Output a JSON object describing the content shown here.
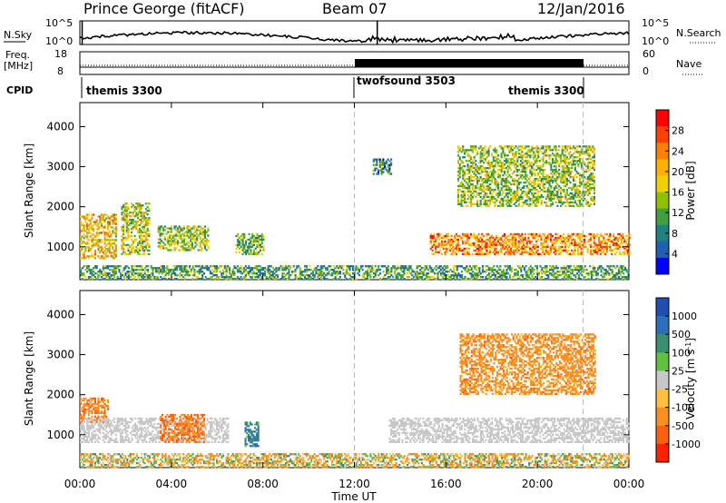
{
  "header": {
    "station": "Prince George (fitACF)",
    "beam": "Beam 07",
    "date": "12/Jan/2016"
  },
  "panels": {
    "nsky": {
      "label": "N.Sky",
      "tick_top": "10^5",
      "tick_bottom": "10^0",
      "right_label": "N.Search",
      "right_tick_top": "10^5",
      "right_tick_bottom": "10^0"
    },
    "freq": {
      "label_line1": "Freq.",
      "label_line2": "[MHz]",
      "tick_top": "18",
      "tick_bottom": "8",
      "right_label": "Nave",
      "right_tick_top": "60",
      "right_tick_bottom": "0"
    },
    "cpid": {
      "label": "CPID",
      "segments": [
        "themis 3300",
        "twofsound 3503",
        "themis 3300"
      ]
    },
    "power": {
      "ylabel": "Slant Range [km]",
      "cbar_label": "Power [dB]",
      "cbar_ticks": [
        "28",
        "24",
        "20",
        "16",
        "12",
        "8",
        "4"
      ],
      "cbar_colors": [
        "#ff0000",
        "#ff4000",
        "#ff8000",
        "#ffb000",
        "#f0d000",
        "#90c000",
        "#40a040",
        "#208080",
        "#2060b0",
        "#0000ff"
      ]
    },
    "velocity": {
      "ylabel": "Slant Range [km]",
      "cbar_label": "Velocity [m s",
      "cbar_label_sup": "-1",
      "cbar_ticks": [
        "1000",
        "500",
        "100",
        "25",
        "-25",
        "-100",
        "-500",
        "-1000"
      ],
      "cbar_colors": [
        "#1f4fb0",
        "#2d6fb8",
        "#3a8f70",
        "#60c040",
        "#c8c8c8",
        "#ffc040",
        "#ff9020",
        "#ff6010",
        "#ff2000"
      ]
    },
    "yticks": [
      "4000",
      "3000",
      "2000",
      "1000"
    ],
    "xticks": [
      "00:00",
      "04:00",
      "08:00",
      "12:00",
      "16:00",
      "20:00",
      "00:00"
    ],
    "xlabel": "Time UT"
  },
  "chart_data": [
    {
      "type": "heatmap",
      "name": "Power",
      "xlabel": "Time UT",
      "ylabel": "Slant Range [km]",
      "xlim": [
        0,
        24
      ],
      "ylim": [
        180,
        4600
      ],
      "colorbar": {
        "label": "Power [dB]",
        "ticks": [
          4,
          8,
          12,
          16,
          20,
          24,
          28
        ],
        "range": [
          0,
          32
        ]
      },
      "echo_regions": [
        {
          "t_start": 0.0,
          "t_end": 1.6,
          "range_min": 700,
          "range_max": 1800,
          "typical_value": 20
        },
        {
          "t_start": 1.8,
          "t_end": 3.0,
          "range_min": 800,
          "range_max": 2100,
          "typical_value": 16
        },
        {
          "t_start": 3.4,
          "t_end": 5.6,
          "range_min": 900,
          "range_max": 1500,
          "typical_value": 14
        },
        {
          "t_start": 6.8,
          "t_end": 8.0,
          "range_min": 800,
          "range_max": 1300,
          "typical_value": 12
        },
        {
          "t_start": 0.0,
          "t_end": 24.0,
          "range_min": 180,
          "range_max": 500,
          "typical_value": 10
        },
        {
          "t_start": 12.8,
          "t_end": 13.6,
          "range_min": 2800,
          "range_max": 3200,
          "typical_value": 8
        },
        {
          "t_start": 15.3,
          "t_end": 24.0,
          "range_min": 800,
          "range_max": 1300,
          "typical_value": 24
        },
        {
          "t_start": 16.5,
          "t_end": 22.5,
          "range_min": 2000,
          "range_max": 3500,
          "typical_value": 14
        }
      ]
    },
    {
      "type": "heatmap",
      "name": "Velocity",
      "xlabel": "Time UT",
      "ylabel": "Slant Range [km]",
      "xlim": [
        0,
        24
      ],
      "ylim": [
        180,
        4600
      ],
      "colorbar": {
        "label": "Velocity [m s-1]",
        "ticks": [
          -1000,
          -500,
          -100,
          -25,
          25,
          100,
          500,
          1000
        ]
      },
      "echo_regions": [
        {
          "t_start": 0.0,
          "t_end": 1.2,
          "range_min": 1300,
          "range_max": 1900,
          "typical_value": -400
        },
        {
          "t_start": 0.0,
          "t_end": 6.5,
          "range_min": 800,
          "range_max": 1400,
          "typical_value": 0
        },
        {
          "t_start": 3.5,
          "t_end": 5.4,
          "range_min": 800,
          "range_max": 1500,
          "typical_value": -500
        },
        {
          "t_start": 7.2,
          "t_end": 7.8,
          "range_min": 700,
          "range_max": 1300,
          "typical_value": 300
        },
        {
          "t_start": 13.5,
          "t_end": 24.0,
          "range_min": 800,
          "range_max": 1400,
          "typical_value": 0
        },
        {
          "t_start": 16.6,
          "t_end": 22.5,
          "range_min": 2000,
          "range_max": 3500,
          "typical_value": -300
        },
        {
          "t_start": 0.0,
          "t_end": 24.0,
          "range_min": 180,
          "range_max": 500,
          "typical_value": -80
        }
      ]
    }
  ]
}
